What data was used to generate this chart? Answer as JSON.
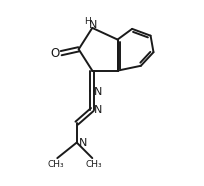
{
  "background_color": "#ffffff",
  "line_color": "#1a1a1a",
  "line_width": 1.4,
  "font_size": 7.5,
  "figsize": [
    2.04,
    1.86
  ],
  "dpi": 100,
  "xlim": [
    0,
    10
  ],
  "ylim": [
    0,
    9.5
  ]
}
